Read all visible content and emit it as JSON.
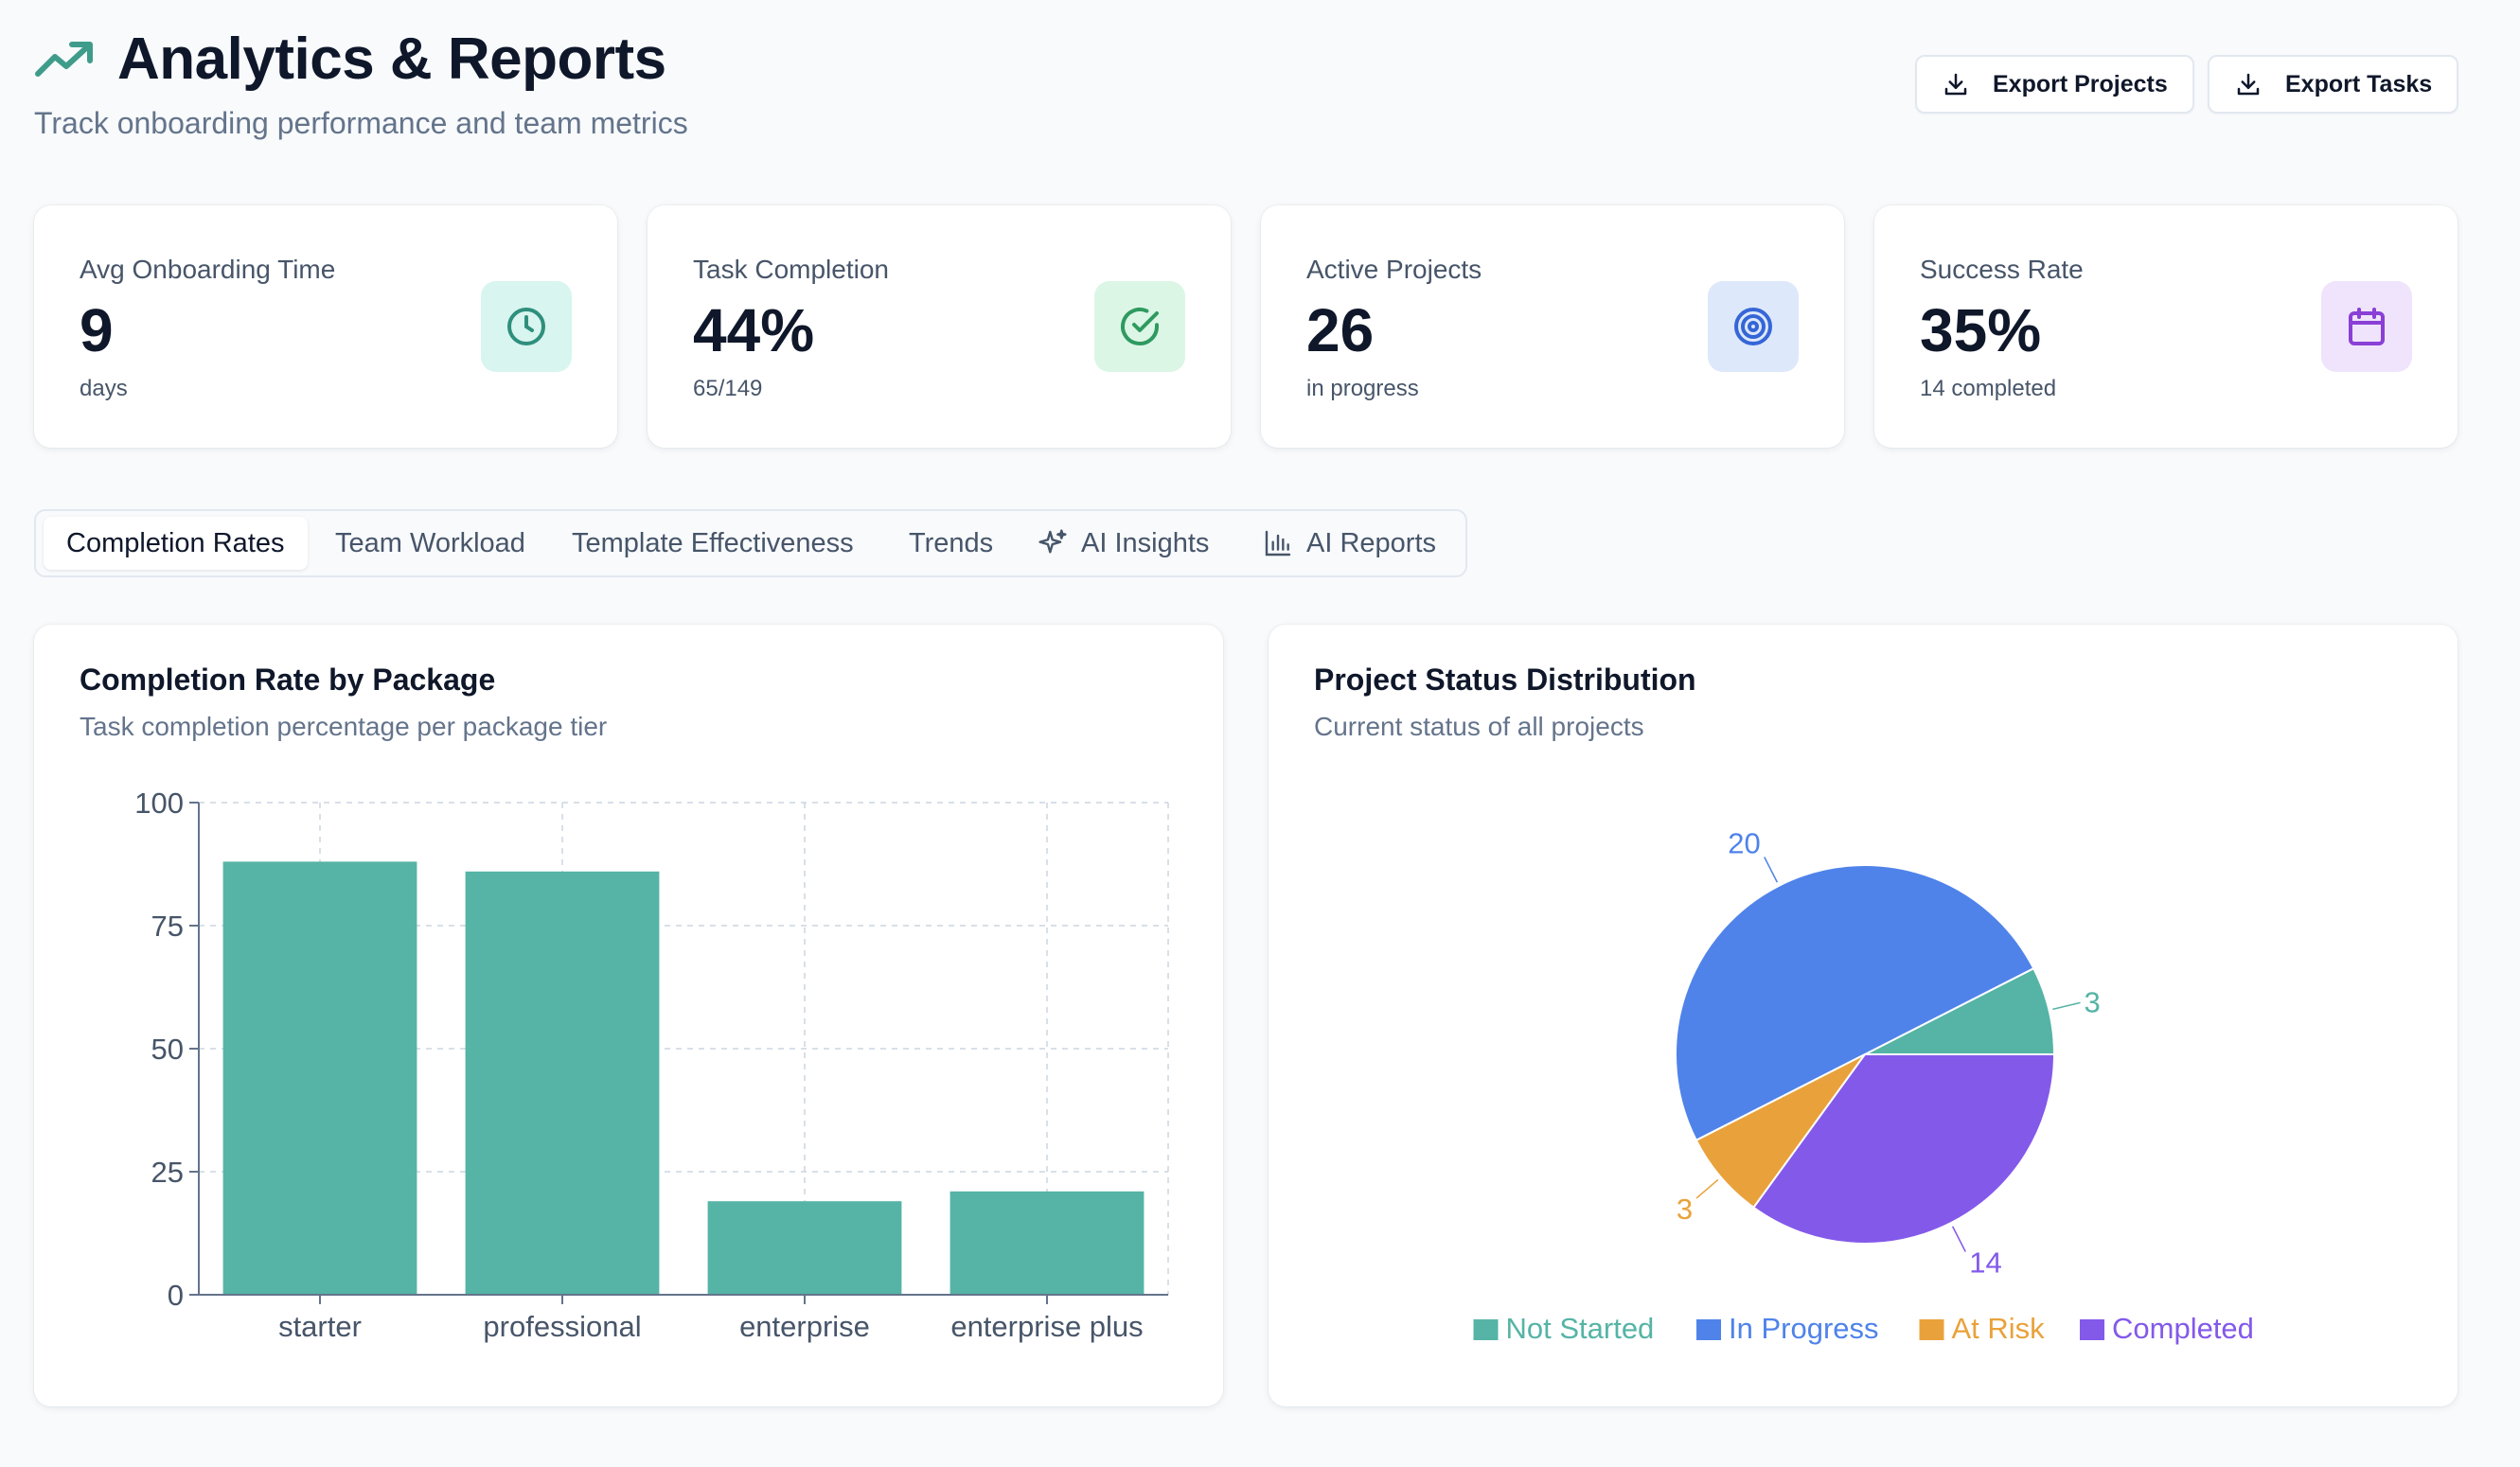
{
  "header": {
    "title": "Analytics & Reports",
    "subtitle": "Track onboarding performance and team metrics",
    "icon": "trending-up-icon",
    "accent_color": "#3f9c8a"
  },
  "actions": {
    "export_projects": "Export Projects",
    "export_tasks": "Export Tasks"
  },
  "stats": [
    {
      "label": "Avg Onboarding Time",
      "value": "9",
      "sub": "days",
      "icon": "clock-icon",
      "icon_color": "#2f8f7d",
      "icon_bg": "#d8f5ef"
    },
    {
      "label": "Task Completion",
      "value": "44%",
      "sub": "65/149",
      "icon": "check-circle-icon",
      "icon_color": "#2f9a5f",
      "icon_bg": "#dcf6e6"
    },
    {
      "label": "Active Projects",
      "value": "26",
      "sub": "in progress",
      "icon": "target-icon",
      "icon_color": "#3566d6",
      "icon_bg": "#dde8fb"
    },
    {
      "label": "Success Rate",
      "value": "35%",
      "sub": "14 completed",
      "icon": "calendar-icon",
      "icon_color": "#8a3fd6",
      "icon_bg": "#efe4fb"
    }
  ],
  "tabs": [
    {
      "label": "Completion Rates",
      "active": true
    },
    {
      "label": "Team Workload",
      "active": false
    },
    {
      "label": "Template Effectiveness",
      "active": false
    },
    {
      "label": "Trends",
      "active": false
    },
    {
      "label": "AI Insights",
      "active": false,
      "icon": "sparkles-icon"
    },
    {
      "label": "AI Reports",
      "active": false,
      "icon": "bar-chart-icon"
    }
  ],
  "panels": {
    "completion": {
      "title": "Completion Rate by Package",
      "subtitle": "Task completion percentage per package tier"
    },
    "status": {
      "title": "Project Status Distribution",
      "subtitle": "Current status of all projects"
    }
  },
  "chart_data": [
    {
      "type": "bar",
      "categories": [
        "starter",
        "professional",
        "enterprise",
        "enterprise plus"
      ],
      "values": [
        88,
        86,
        19,
        21
      ],
      "ylim": [
        0,
        100
      ],
      "yticks": [
        0,
        25,
        50,
        75,
        100
      ],
      "color": "#55b4a5",
      "grid": true
    },
    {
      "type": "pie",
      "labels": [
        "Not Started",
        "In Progress",
        "At Risk",
        "Completed"
      ],
      "values": [
        3,
        20,
        3,
        14
      ],
      "colors": [
        "#55b4a5",
        "#4f83ea",
        "#e9a23b",
        "#8359ea"
      ],
      "legend": "bottom"
    }
  ]
}
